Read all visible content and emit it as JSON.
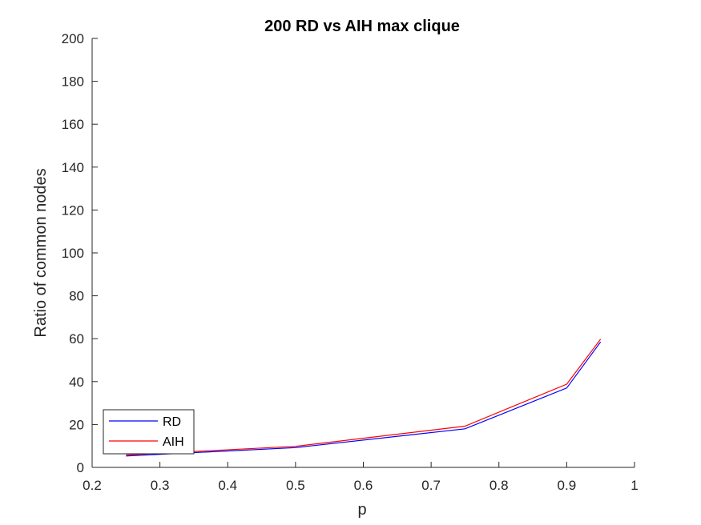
{
  "chart_data": {
    "type": "line",
    "title": "200 RD vs AIH max clique",
    "xlabel": "p",
    "ylabel": "Ratio of common nodes",
    "xlim": [
      0.2,
      1
    ],
    "ylim": [
      0,
      200
    ],
    "xticks": [
      "0.2",
      "0.3",
      "0.4",
      "0.5",
      "0.6",
      "0.7",
      "0.8",
      "0.9",
      "1"
    ],
    "yticks": [
      "0",
      "20",
      "40",
      "60",
      "80",
      "100",
      "120",
      "140",
      "160",
      "180",
      "200"
    ],
    "grid": false,
    "legend_position": "bottom-left",
    "series": [
      {
        "name": "RD",
        "color": "#0000ff",
        "x": [
          0.25,
          0.5,
          0.75,
          0.9,
          0.95
        ],
        "y": [
          5.3,
          9.2,
          18.0,
          37.0,
          58.5
        ]
      },
      {
        "name": "AIH",
        "color": "#ff0000",
        "x": [
          0.25,
          0.5,
          0.75,
          0.9,
          0.95
        ],
        "y": [
          5.8,
          9.8,
          19.2,
          38.8,
          59.8
        ]
      }
    ]
  }
}
